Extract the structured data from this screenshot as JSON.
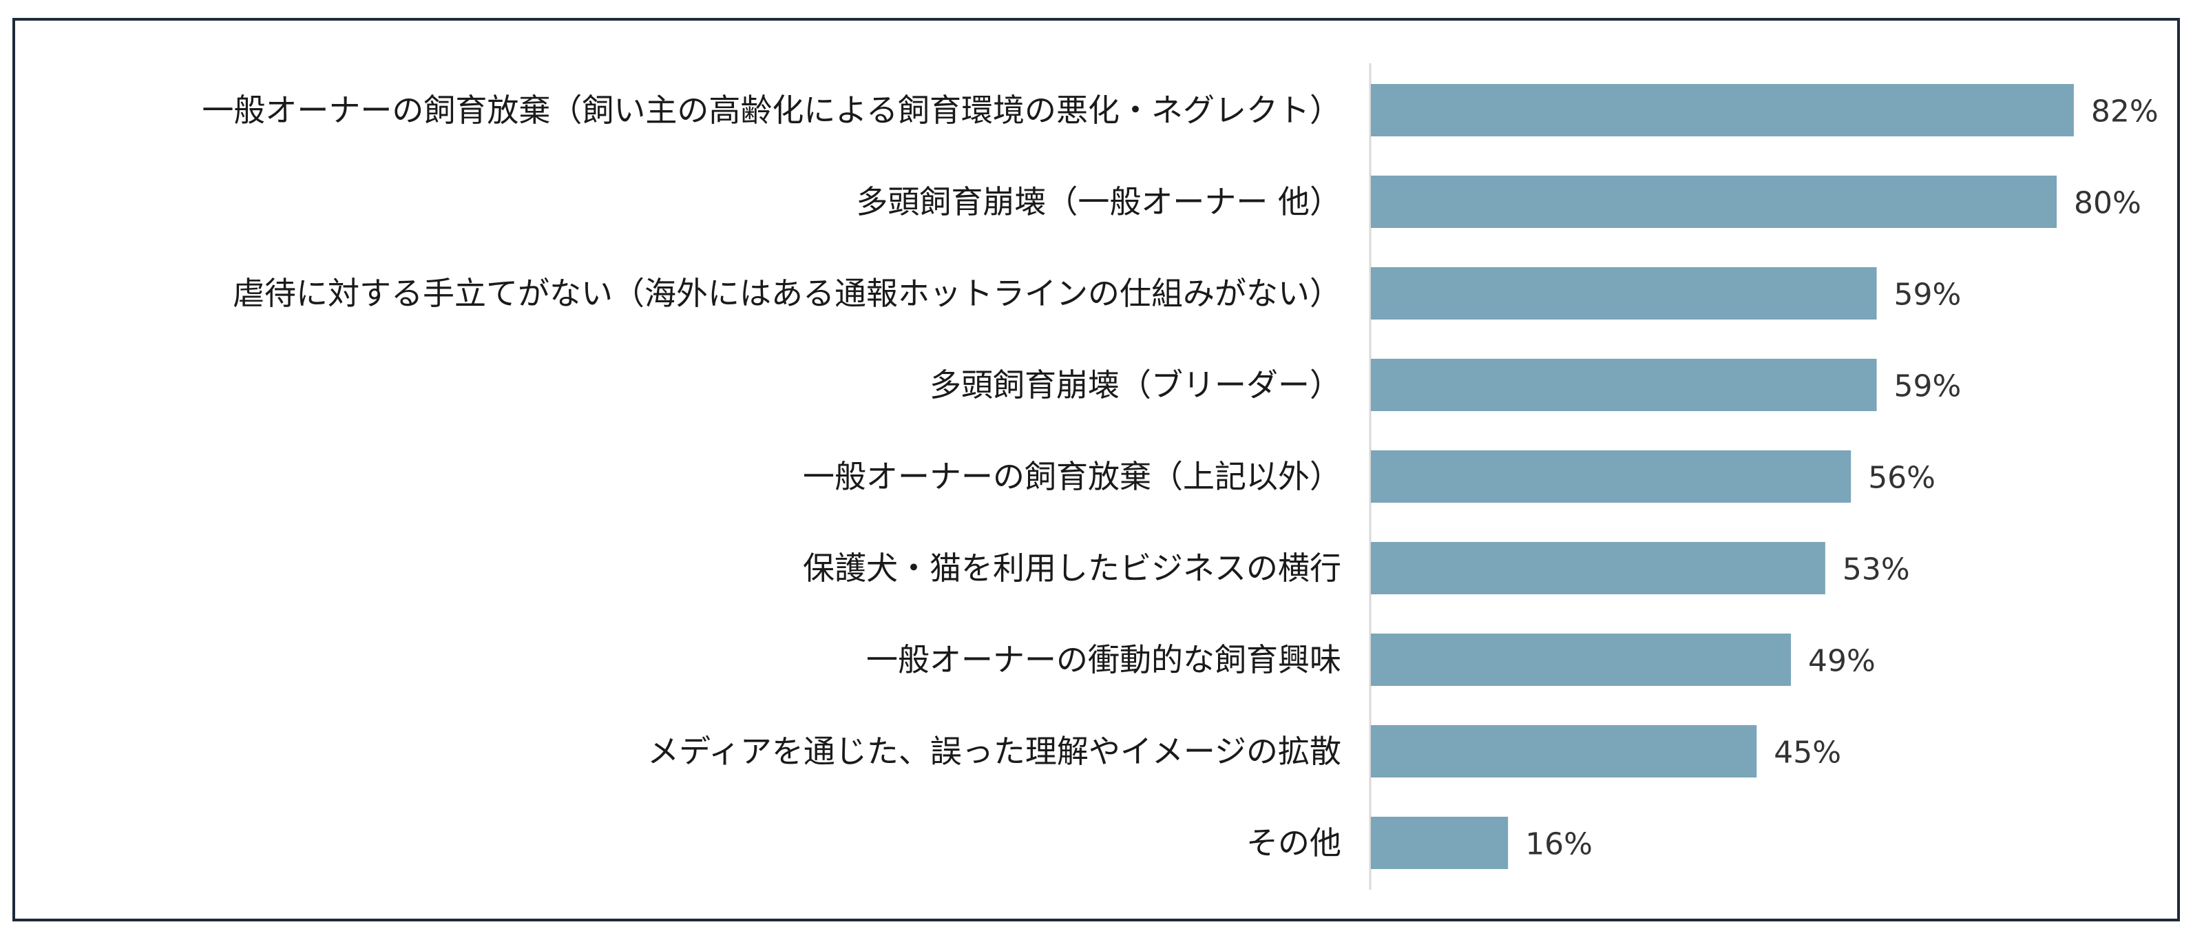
{
  "chart_data": {
    "type": "bar",
    "orientation": "horizontal",
    "categories": [
      "一般オーナーの飼育放棄（飼い主の高齢化による飼育環境の悪化・ネグレクト）",
      "多頭飼育崩壊（一般オーナー 他）",
      "虐待に対する手立てがない（海外にはある通報ホットラインの仕組みがない）",
      "多頭飼育崩壊（ブリーダー）",
      "一般オーナーの飼育放棄（上記以外）",
      "保護犬・猫を利用したビジネスの横行",
      "一般オーナーの衝動的な飼育興味",
      "メディアを通じた、誤った理解やイメージの拡散",
      "その他"
    ],
    "values": [
      82,
      80,
      59,
      59,
      56,
      53,
      49,
      45,
      16
    ],
    "value_labels": [
      "82%",
      "80%",
      "59%",
      "59%",
      "56%",
      "53%",
      "49%",
      "45%",
      "16%"
    ],
    "xlim": [
      0,
      100
    ],
    "grid": false,
    "legend": "none",
    "bar_color": "#7ba5b9",
    "axis_color": "#d9d9d9",
    "frame_color": "#1d2b3a"
  }
}
